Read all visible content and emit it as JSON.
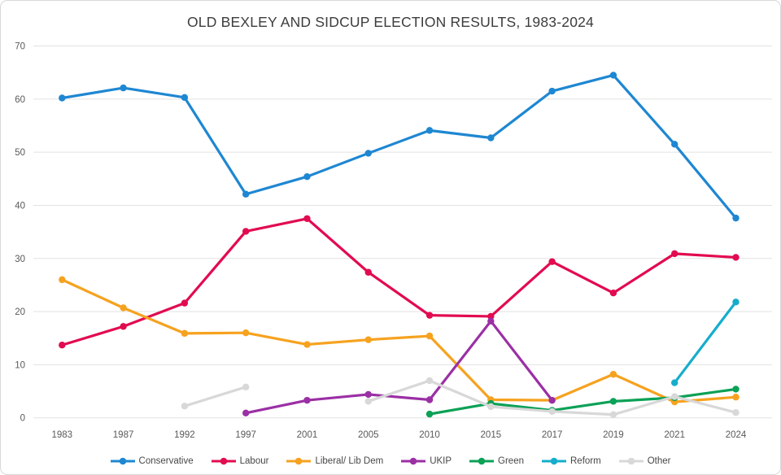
{
  "chart_data": {
    "type": "line",
    "title": "OLD BEXLEY AND SIDCUP ELECTION RESULTS, 1983-2024",
    "xlabel": "",
    "ylabel": "",
    "ylim": [
      0,
      70
    ],
    "ytick_labels": [
      "0",
      "10",
      "20",
      "30",
      "40",
      "50",
      "60",
      "70"
    ],
    "grid": true,
    "legend_position": "bottom",
    "categories": [
      "1983",
      "1987",
      "1992",
      "1997",
      "2001",
      "2005",
      "2010",
      "2015",
      "2017",
      "2019",
      "2021",
      "2024"
    ],
    "series": [
      {
        "name": "Conservative",
        "color": "#1e87d2",
        "values": [
          60.2,
          62.1,
          60.3,
          42.1,
          45.4,
          49.8,
          54.1,
          52.7,
          61.5,
          64.5,
          51.5,
          37.6
        ]
      },
      {
        "name": "Labour",
        "color": "#e20b50",
        "values": [
          13.7,
          17.2,
          21.6,
          35.1,
          37.5,
          27.4,
          19.3,
          19.1,
          29.4,
          23.5,
          30.9,
          30.2
        ]
      },
      {
        "name": "Liberal/ Lib Dem",
        "color": "#f6a21f",
        "values": [
          26.0,
          20.7,
          15.9,
          16.0,
          13.8,
          14.7,
          15.4,
          3.4,
          3.3,
          8.2,
          3.0,
          3.9
        ]
      },
      {
        "name": "UKIP",
        "color": "#9b2fa5",
        "values": [
          null,
          null,
          null,
          0.9,
          3.3,
          4.4,
          3.4,
          18.2,
          3.3,
          null,
          null,
          null
        ]
      },
      {
        "name": "Green",
        "color": "#0ba156",
        "values": [
          null,
          null,
          null,
          null,
          null,
          null,
          0.7,
          2.7,
          1.4,
          3.1,
          3.8,
          5.4
        ]
      },
      {
        "name": "Reform",
        "color": "#16adcc",
        "values": [
          null,
          null,
          null,
          null,
          null,
          null,
          null,
          null,
          null,
          null,
          6.6,
          21.8
        ]
      },
      {
        "name": "Other",
        "color": "#d8d8d8",
        "values": [
          null,
          null,
          2.2,
          5.8,
          null,
          3.1,
          7.0,
          2.1,
          1.2,
          0.6,
          4.0,
          1.0
        ]
      }
    ],
    "colors": {
      "gridline": "#e2e2e2",
      "title_text": "#3d3d3d",
      "axis_text": "#595959",
      "legend_text": "#474747"
    }
  }
}
